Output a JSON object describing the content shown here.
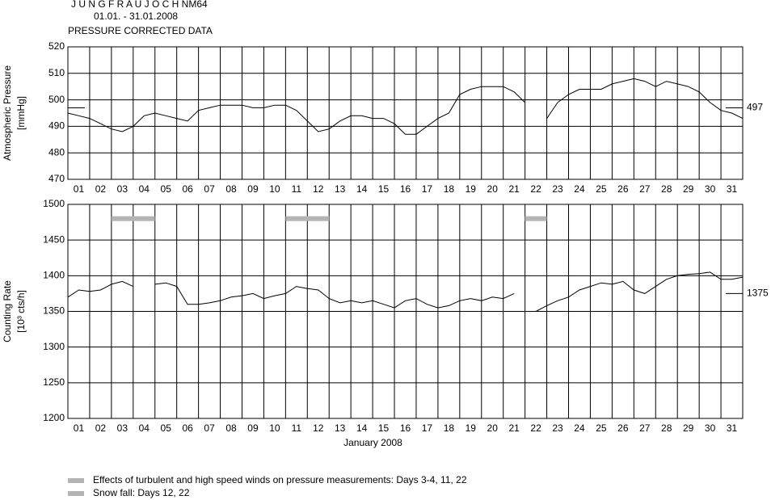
{
  "header": {
    "station": "J U N G F R A U J O C H  NM64",
    "period": "01.01. - 31.01.2008",
    "subtitle": "PRESSURE CORRECTED DATA"
  },
  "chart_data": [
    {
      "type": "line",
      "ylabel": [
        "Atmospheric Pressure",
        "[mmHg]"
      ],
      "categories": [
        "01",
        "02",
        "03",
        "04",
        "05",
        "06",
        "07",
        "08",
        "09",
        "10",
        "11",
        "12",
        "13",
        "14",
        "15",
        "16",
        "17",
        "18",
        "19",
        "20",
        "21",
        "22",
        "23",
        "24",
        "25",
        "26",
        "27",
        "28",
        "29",
        "30",
        "31"
      ],
      "xlim": [
        1,
        32
      ],
      "xticks": [
        1,
        2,
        3,
        4,
        5,
        6,
        7,
        8,
        9,
        10,
        11,
        12,
        13,
        14,
        15,
        16,
        17,
        18,
        19,
        20,
        21,
        22,
        23,
        24,
        25,
        26,
        27,
        28,
        29,
        30,
        31,
        32
      ],
      "ylim": [
        470,
        520
      ],
      "yticks": [
        470,
        480,
        490,
        500,
        510,
        520
      ],
      "x": [
        1,
        1.5,
        2,
        2.5,
        3,
        3.5,
        4,
        4.5,
        5,
        5.5,
        6,
        6.5,
        7,
        7.5,
        8,
        8.5,
        9,
        9.5,
        10,
        10.5,
        11,
        11.5,
        12,
        12.5,
        13,
        13.5,
        14,
        14.5,
        15,
        15.5,
        16,
        16.5,
        17,
        17.5,
        18,
        18.5,
        19,
        19.5,
        20,
        20.5,
        21,
        21.5,
        22,
        22.5,
        23,
        23.5,
        24,
        24.5,
        25,
        25.5,
        26,
        26.5,
        27,
        27.5,
        28,
        28.5,
        29,
        29.5,
        30,
        30.5,
        31,
        31.5,
        32
      ],
      "series": [
        {
          "color": "#000000",
          "values": [
            495,
            494,
            493,
            491,
            489,
            488,
            490,
            494,
            495,
            494,
            493,
            492,
            496,
            497,
            498,
            498,
            498,
            497,
            497,
            498,
            498,
            496,
            492,
            488,
            489,
            492,
            494,
            494,
            493,
            493,
            491,
            487,
            487,
            490,
            493,
            495,
            502,
            504,
            505,
            505,
            505,
            503,
            499,
            null,
            493,
            499,
            502,
            504,
            504,
            504,
            506,
            507,
            508,
            507,
            505,
            507,
            506,
            505,
            503,
            499,
            496,
            495,
            493
          ]
        }
      ],
      "reference": {
        "value": 497,
        "label": "497"
      }
    },
    {
      "type": "line",
      "ylabel": [
        "Counting Rate",
        "[10³ cts/h]"
      ],
      "categories": [
        "01",
        "02",
        "03",
        "04",
        "05",
        "06",
        "07",
        "08",
        "09",
        "10",
        "11",
        "12",
        "13",
        "14",
        "15",
        "16",
        "17",
        "18",
        "19",
        "20",
        "21",
        "22",
        "23",
        "24",
        "25",
        "26",
        "27",
        "28",
        "29",
        "30",
        "31"
      ],
      "xlabel": "January 2008",
      "xlim": [
        1,
        32
      ],
      "xticks": [
        1,
        2,
        3,
        4,
        5,
        6,
        7,
        8,
        9,
        10,
        11,
        12,
        13,
        14,
        15,
        16,
        17,
        18,
        19,
        20,
        21,
        22,
        23,
        24,
        25,
        26,
        27,
        28,
        29,
        30,
        31,
        32
      ],
      "ylim": [
        1200,
        1500
      ],
      "yticks": [
        1200,
        1250,
        1300,
        1350,
        1400,
        1450,
        1500
      ],
      "x": [
        1,
        1.5,
        2,
        2.5,
        3,
        3.5,
        4,
        4.5,
        5,
        5.5,
        6,
        6.5,
        7,
        7.5,
        8,
        8.5,
        9,
        9.5,
        10,
        10.5,
        11,
        11.5,
        12,
        12.5,
        13,
        13.5,
        14,
        14.5,
        15,
        15.5,
        16,
        16.5,
        17,
        17.5,
        18,
        18.5,
        19,
        19.5,
        20,
        20.5,
        21,
        21.5,
        22,
        22.5,
        23,
        23.5,
        24,
        24.5,
        25,
        25.5,
        26,
        26.5,
        27,
        27.5,
        28,
        28.5,
        29,
        29.5,
        30,
        30.5,
        31,
        31.5,
        32
      ],
      "series": [
        {
          "color": "#000000",
          "values": [
            1370,
            1380,
            1378,
            1380,
            1388,
            1392,
            1385,
            null,
            1388,
            1390,
            1385,
            1360,
            1360,
            1362,
            1365,
            1370,
            1372,
            1375,
            1368,
            1372,
            1375,
            1385,
            1382,
            1380,
            1368,
            1362,
            1365,
            1362,
            1365,
            1360,
            1355,
            1365,
            1368,
            1360,
            1355,
            1358,
            1365,
            1368,
            1365,
            1370,
            1368,
            1375,
            null,
            1350,
            1358,
            1365,
            1370,
            1380,
            1385,
            1390,
            1388,
            1392,
            1380,
            1375,
            1385,
            1395,
            1400,
            1402,
            1403,
            1405,
            1395,
            1395,
            1398
          ]
        }
      ],
      "reference": {
        "value": 1375,
        "label": "1375"
      },
      "highlight_level": 1480,
      "highlight_spans": [
        [
          3,
          5
        ],
        [
          11,
          13
        ],
        [
          22,
          23
        ]
      ],
      "highlight_color": "#b4b4b4"
    }
  ],
  "legend": [
    "Effects of turbulent and high speed winds on pressure measurements: Days 3-4, 11, 22",
    "Snow fall: Days 12, 22"
  ]
}
